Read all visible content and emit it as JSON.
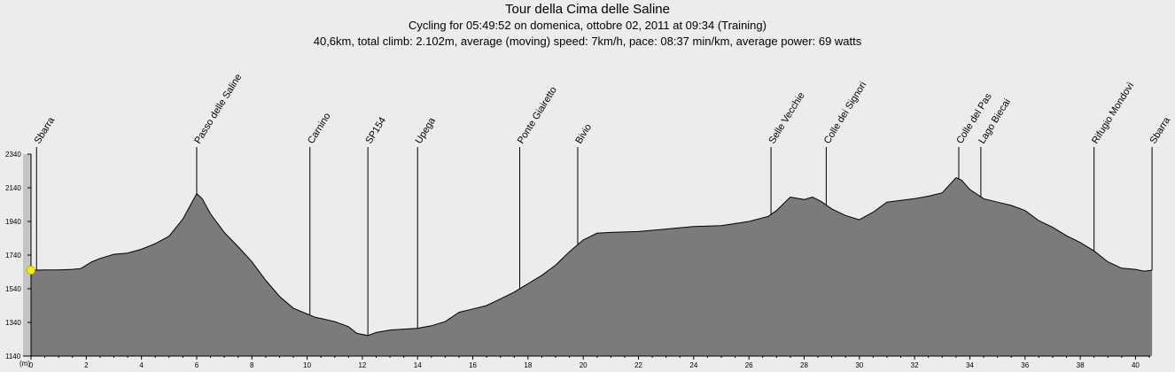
{
  "header": {
    "title": "Tour della Cima delle Saline",
    "subtitle": "Cycling for 05:49:52 on domenica, ottobre 02, 2011 at 09:34 (Training)",
    "stats": "40,6km, total climb: 2.102m, average (moving) speed: 7km/h, pace: 08:37 min/km, average power: 69 watts"
  },
  "chart_data": {
    "type": "area",
    "title": "Tour della Cima delle Saline",
    "xlabel": "",
    "ylabel": "(m)",
    "xlim": [
      0,
      41
    ],
    "ylim": [
      1140,
      2340
    ],
    "grid": false,
    "x_ticks": [
      "0",
      "2",
      "4",
      "6",
      "8",
      "10",
      "12",
      "14",
      "16",
      "18",
      "20",
      "22",
      "24",
      "26",
      "28",
      "30",
      "32",
      "34",
      "36",
      "38",
      "40"
    ],
    "y_ticks": [
      "1140",
      "1340",
      "1540",
      "1740",
      "1940",
      "2140",
      "2340"
    ],
    "colors": {
      "fill": "#7b7b7b",
      "line": "#000000",
      "marker": "#f5ef00",
      "axis": "#000000"
    },
    "marker": {
      "x": 0,
      "y": 1650
    },
    "profile": [
      [
        0,
        1650
      ],
      [
        0.5,
        1652
      ],
      [
        1,
        1652
      ],
      [
        1.5,
        1655
      ],
      [
        1.8,
        1660
      ],
      [
        2.2,
        1700
      ],
      [
        2.5,
        1720
      ],
      [
        3,
        1745
      ],
      [
        3.5,
        1752
      ],
      [
        4,
        1775
      ],
      [
        4.5,
        1808
      ],
      [
        5,
        1852
      ],
      [
        5.5,
        1955
      ],
      [
        5.8,
        2045
      ],
      [
        6,
        2105
      ],
      [
        6.2,
        2075
      ],
      [
        6.5,
        1985
      ],
      [
        7,
        1875
      ],
      [
        7.5,
        1790
      ],
      [
        8,
        1700
      ],
      [
        8.5,
        1590
      ],
      [
        9,
        1495
      ],
      [
        9.5,
        1425
      ],
      [
        10,
        1390
      ],
      [
        10.3,
        1370
      ],
      [
        10.6,
        1360
      ],
      [
        11,
        1345
      ],
      [
        11.5,
        1315
      ],
      [
        11.8,
        1275
      ],
      [
        12.2,
        1262
      ],
      [
        12.5,
        1280
      ],
      [
        13,
        1295
      ],
      [
        13.5,
        1300
      ],
      [
        14,
        1305
      ],
      [
        14.5,
        1320
      ],
      [
        15,
        1345
      ],
      [
        15.5,
        1400
      ],
      [
        16,
        1420
      ],
      [
        16.5,
        1440
      ],
      [
        17,
        1480
      ],
      [
        17.5,
        1520
      ],
      [
        17.8,
        1550
      ],
      [
        18,
        1570
      ],
      [
        18.5,
        1620
      ],
      [
        19,
        1680
      ],
      [
        19.5,
        1760
      ],
      [
        20,
        1830
      ],
      [
        20.5,
        1870
      ],
      [
        21,
        1875
      ],
      [
        22,
        1880
      ],
      [
        23,
        1895
      ],
      [
        24,
        1910
      ],
      [
        25,
        1915
      ],
      [
        26,
        1940
      ],
      [
        26.7,
        1970
      ],
      [
        27,
        2005
      ],
      [
        27.5,
        2085
      ],
      [
        28,
        2070
      ],
      [
        28.3,
        2085
      ],
      [
        28.6,
        2060
      ],
      [
        29,
        2015
      ],
      [
        29.5,
        1975
      ],
      [
        30,
        1950
      ],
      [
        30.5,
        1995
      ],
      [
        31,
        2055
      ],
      [
        31.5,
        2065
      ],
      [
        32,
        2075
      ],
      [
        32.5,
        2090
      ],
      [
        33,
        2110
      ],
      [
        33.5,
        2200
      ],
      [
        33.7,
        2185
      ],
      [
        34,
        2130
      ],
      [
        34.5,
        2075
      ],
      [
        35,
        2055
      ],
      [
        35.5,
        2035
      ],
      [
        36,
        2005
      ],
      [
        36.5,
        1945
      ],
      [
        37,
        1905
      ],
      [
        37.5,
        1855
      ],
      [
        38,
        1815
      ],
      [
        38.5,
        1765
      ],
      [
        39,
        1700
      ],
      [
        39.5,
        1662
      ],
      [
        40,
        1655
      ],
      [
        40.3,
        1645
      ],
      [
        40.6,
        1650
      ]
    ],
    "waypoints": [
      {
        "label": "Sbarra",
        "x": 0.2
      },
      {
        "label": "Passo delle Saline",
        "x": 6
      },
      {
        "label": "Carnino",
        "x": 10.1
      },
      {
        "label": "SP154",
        "x": 12.2
      },
      {
        "label": "Upega",
        "x": 14
      },
      {
        "label": "Ponte Giairetto",
        "x": 17.7
      },
      {
        "label": "Bivio",
        "x": 19.8
      },
      {
        "label": "Selle Vecchie",
        "x": 26.8
      },
      {
        "label": "Colle dei Signori",
        "x": 28.8
      },
      {
        "label": "Colle del Pas",
        "x": 33.6
      },
      {
        "label": "Lago Biecai",
        "x": 34.4
      },
      {
        "label": "Rifugio Mondovì",
        "x": 38.5
      },
      {
        "label": "Sbarra",
        "x": 40.6
      }
    ]
  }
}
